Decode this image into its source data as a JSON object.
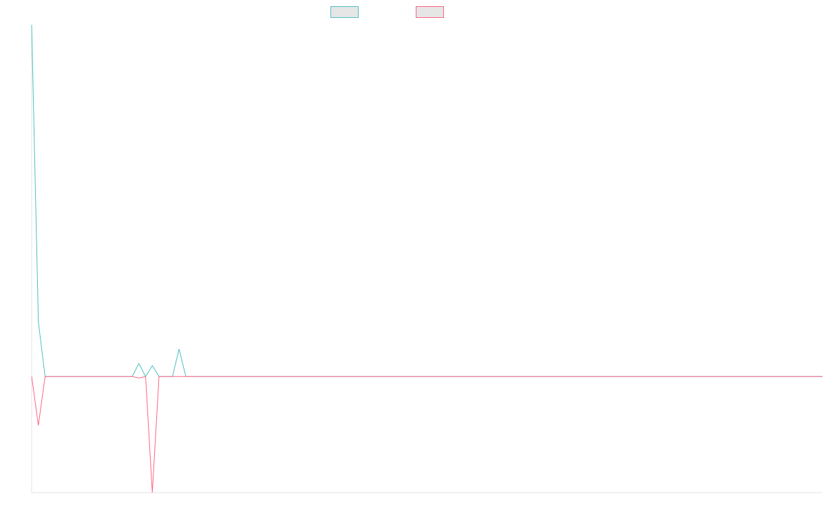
{
  "chart_data": {
    "type": "line",
    "categories": [
      null,
      null,
      null,
      null,
      null,
      null,
      null,
      null,
      null,
      null,
      null,
      null,
      null,
      null,
      null,
      null,
      null,
      null,
      null,
      null,
      null,
      null,
      null,
      null,
      null,
      null,
      null,
      null,
      null,
      null,
      null,
      null,
      null,
      null,
      null,
      null,
      null,
      null,
      null,
      null,
      null,
      null,
      null,
      null,
      null,
      null,
      null,
      null,
      null,
      null,
      null,
      null,
      null,
      null,
      null,
      null,
      null,
      null,
      null,
      null,
      null,
      null,
      null,
      null,
      null,
      null,
      null,
      null,
      null,
      null,
      null,
      null,
      null,
      null,
      null,
      null,
      null,
      null,
      null,
      null,
      null,
      null,
      null,
      null,
      null,
      null,
      null,
      null,
      null,
      null,
      null,
      null,
      null,
      null,
      null,
      null,
      null,
      null,
      null,
      null,
      null,
      null,
      null,
      null,
      null,
      null,
      null,
      null,
      null,
      null,
      null,
      null,
      null,
      null,
      null,
      null,
      null,
      null,
      null
    ],
    "series": [
      {
        "color": "#4bc0c0",
        "values": [
          100,
          15.5,
          0,
          0,
          0,
          0,
          0,
          0,
          0,
          0,
          0,
          0,
          0,
          0,
          0,
          0,
          3.7,
          0,
          3.1,
          0,
          0,
          0,
          7.8,
          0,
          0,
          0,
          0,
          0,
          0,
          0,
          0,
          0,
          0,
          0,
          0,
          0,
          0,
          0,
          0,
          0,
          0,
          0,
          0,
          0,
          0,
          0,
          0,
          0,
          0,
          0,
          0,
          0,
          0,
          0,
          0,
          0,
          0,
          0,
          0,
          0,
          0,
          0,
          0,
          0,
          0,
          0,
          0,
          0,
          0,
          0,
          0,
          0,
          0,
          0,
          0,
          0,
          0,
          0,
          0,
          0,
          0,
          0,
          0,
          0,
          0,
          0,
          0,
          0,
          0,
          0,
          0,
          0,
          0,
          0,
          0,
          0,
          0,
          0,
          0,
          0,
          0,
          0,
          0,
          0,
          0,
          0,
          0,
          0,
          0,
          0,
          0,
          0,
          0,
          0,
          0,
          0,
          0,
          0,
          0
        ]
      },
      {
        "color": "#ff6384",
        "values": [
          0,
          -13.9,
          0,
          0,
          0,
          0,
          0,
          0,
          0,
          0,
          0,
          0,
          0,
          0,
          0,
          0,
          -0.4,
          0,
          -33,
          0,
          0,
          0,
          0,
          0,
          0,
          0,
          0,
          0,
          0,
          0,
          0,
          0,
          0,
          0,
          0,
          0,
          0,
          0,
          0,
          0,
          0,
          0,
          0,
          0,
          0,
          0,
          0,
          0,
          0,
          0,
          0,
          0,
          0,
          0,
          0,
          0,
          0,
          0,
          0,
          0,
          0,
          0,
          0,
          0,
          0,
          0,
          0,
          0,
          0,
          0,
          0,
          0,
          0,
          0,
          0,
          0,
          0,
          0,
          0,
          0,
          0,
          0,
          0,
          0,
          0,
          0,
          0,
          0,
          0,
          0,
          0,
          0,
          0,
          0,
          0,
          0,
          0,
          0,
          0,
          0,
          0,
          0,
          0,
          0,
          0,
          0,
          0,
          0,
          0,
          0,
          0,
          0,
          0,
          0,
          0,
          0,
          0,
          0,
          0
        ]
      }
    ],
    "ylim": [
      -33,
      100
    ],
    "grid": false
  }
}
